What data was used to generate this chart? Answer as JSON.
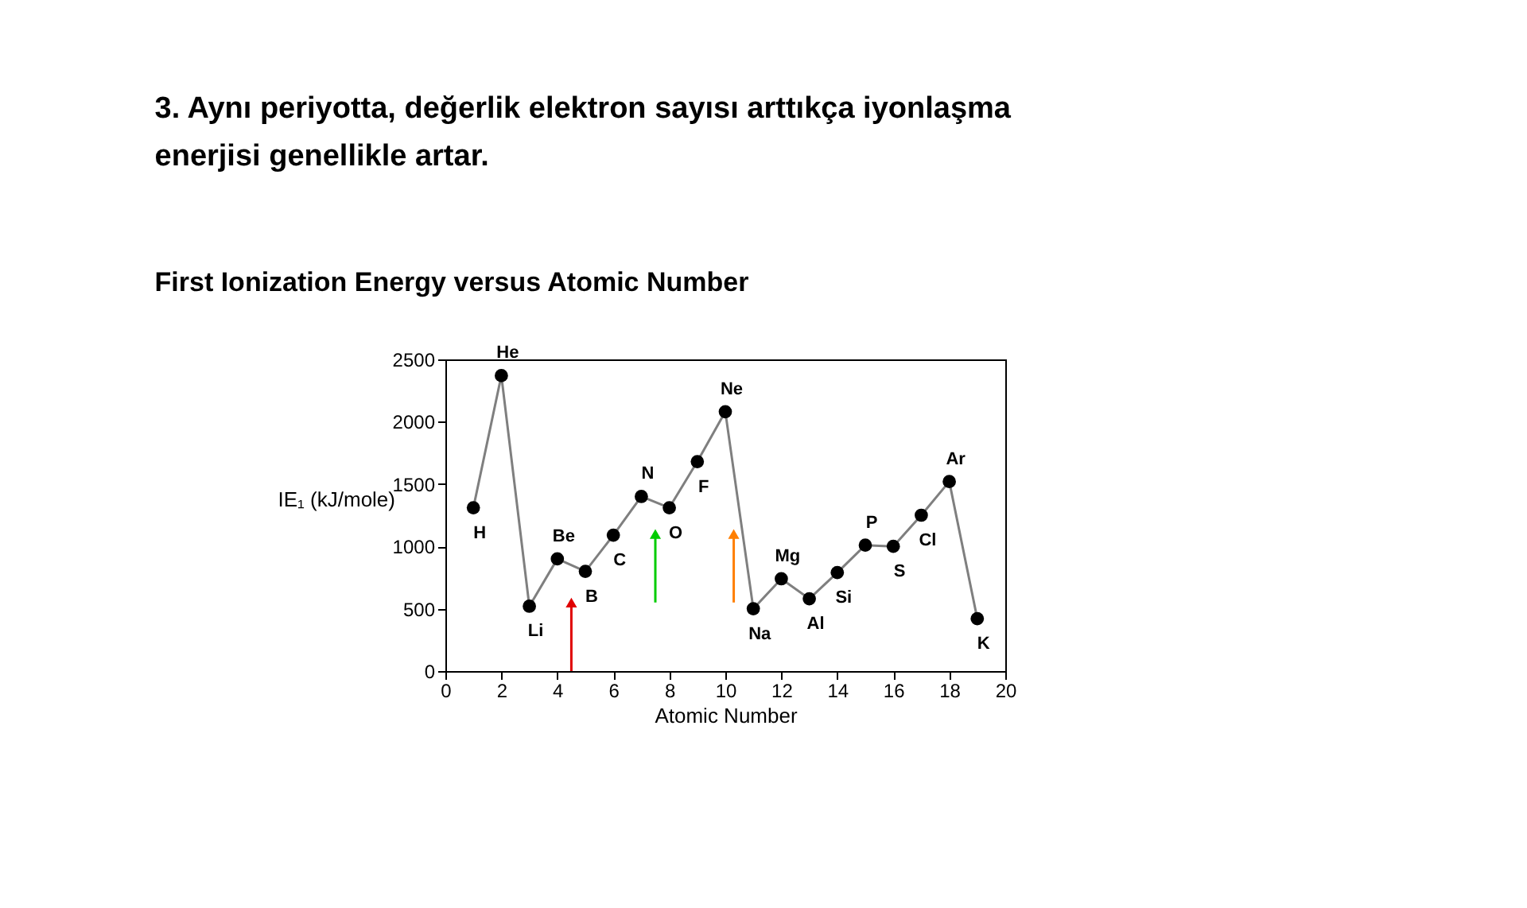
{
  "chart_data": {
    "type": "line",
    "title": "3. Aynı periyotta, değerlik elektron sayısı arttıkça iyonlaşma enerjisi genellikle artar.",
    "subtitle": "First Ionization Energy versus Atomic Number",
    "xlabel": "Atomic Number",
    "ylabel": "IE₁ (kJ/mole)",
    "x": [
      1,
      2,
      3,
      4,
      5,
      6,
      7,
      8,
      9,
      10,
      11,
      12,
      13,
      14,
      15,
      16,
      17,
      18,
      19
    ],
    "series": [
      {
        "color": "#7f7f7f",
        "values": [
          1310,
          2370,
          520,
          900,
          800,
          1090,
          1400,
          1310,
          1680,
          2080,
          500,
          740,
          580,
          790,
          1010,
          1000,
          1250,
          1520,
          420
        ]
      }
    ],
    "annotations": [
      {
        "text": "H",
        "x": 1,
        "y": 1310
      },
      {
        "text": "He",
        "x": 2,
        "y": 2370
      },
      {
        "text": "Li",
        "x": 3,
        "y": 520
      },
      {
        "text": "Be",
        "x": 4,
        "y": 900
      },
      {
        "text": "B",
        "x": 5,
        "y": 800
      },
      {
        "text": "C",
        "x": 6,
        "y": 1090
      },
      {
        "text": "N",
        "x": 7,
        "y": 1400
      },
      {
        "text": "O",
        "x": 8,
        "y": 1310
      },
      {
        "text": "F",
        "x": 9,
        "y": 1680
      },
      {
        "text": "Ne",
        "x": 10,
        "y": 2080
      },
      {
        "text": "Na",
        "x": 11,
        "y": 500
      },
      {
        "text": "Mg",
        "x": 12,
        "y": 740
      },
      {
        "text": "Al",
        "x": 13,
        "y": 580
      },
      {
        "text": "Si",
        "x": 14,
        "y": 790
      },
      {
        "text": "P",
        "x": 15,
        "y": 1010
      },
      {
        "text": "S",
        "x": 16,
        "y": 1000
      },
      {
        "text": "Cl",
        "x": 17,
        "y": 1250
      },
      {
        "text": "Ar",
        "x": 18,
        "y": 1520
      },
      {
        "text": "K",
        "x": 19,
        "y": 420
      }
    ],
    "xlim": [
      0,
      20
    ],
    "xticks": [
      0,
      2,
      4,
      6,
      8,
      10,
      12,
      14,
      16,
      18,
      20
    ],
    "ylim": [
      0,
      2500
    ],
    "yticks": [
      0,
      500,
      1000,
      1500,
      2000,
      2500
    ],
    "grid": false,
    "marker": "circle",
    "line_style": "solid"
  }
}
